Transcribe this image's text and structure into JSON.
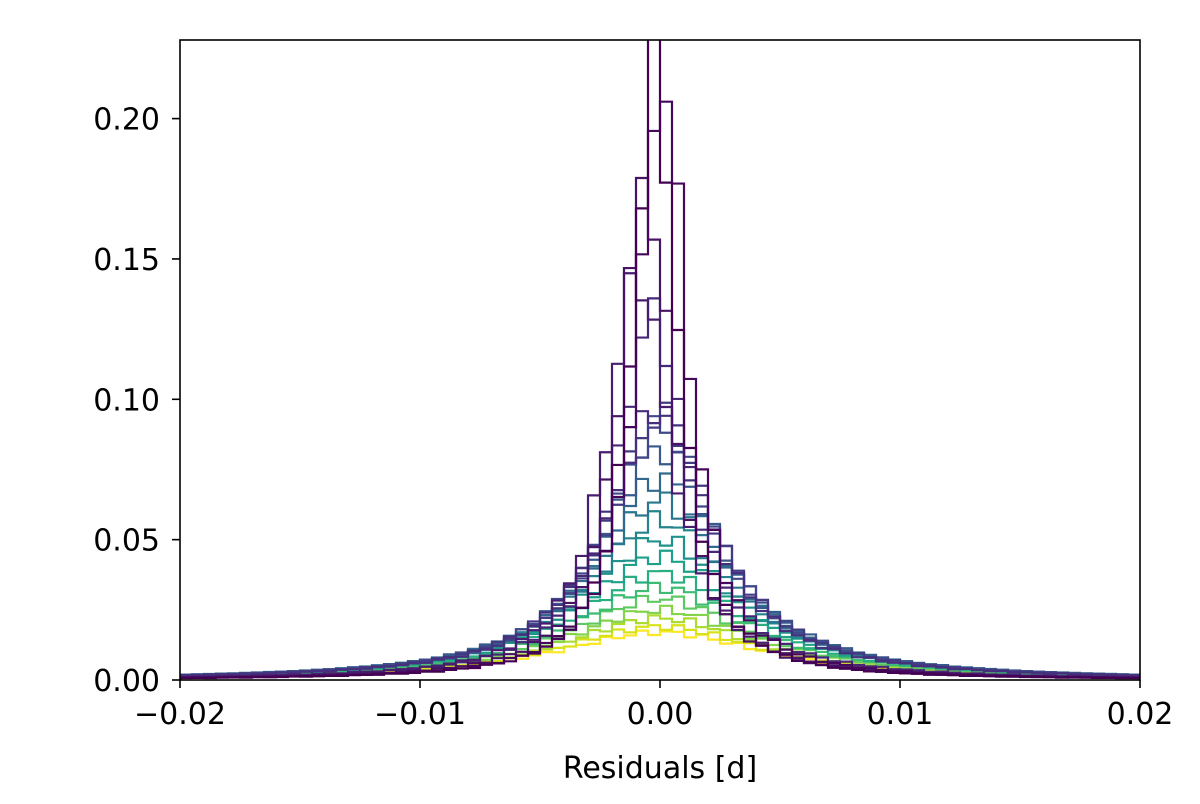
{
  "chart_data": {
    "type": "histogram",
    "xlabel": "Residuals [d]",
    "ylabel": "",
    "xlim": [
      -0.02,
      0.02
    ],
    "ylim": [
      0,
      0.228
    ],
    "grid": false,
    "legend": "none",
    "x_ticks": [
      -0.02,
      -0.01,
      0.0,
      0.01,
      0.02
    ],
    "x_tick_labels": [
      "−0.02",
      "−0.01",
      "0.00",
      "0.01",
      "0.02"
    ],
    "y_ticks": [
      0.0,
      0.05,
      0.1,
      0.15,
      0.2
    ],
    "y_tick_labels": [
      "0.00",
      "0.05",
      "0.10",
      "0.15",
      "0.20"
    ],
    "colormap": "viridis",
    "series": [
      {
        "color": "#440154",
        "bin_width": 0.0005,
        "peak": 0.217,
        "center": -0.0002,
        "width": 0.0011,
        "tail": 0.35
      },
      {
        "color": "#46085c",
        "bin_width": 0.0005,
        "peak": 0.216,
        "center": 0.0001,
        "width": 0.0012,
        "tail": 0.35
      },
      {
        "color": "#471365",
        "bin_width": 0.0005,
        "peak": 0.178,
        "center": -0.0006,
        "width": 0.0013,
        "tail": 0.35
      },
      {
        "color": "#481d6f",
        "bin_width": 0.0005,
        "peak": 0.145,
        "center": -0.0009,
        "width": 0.0016,
        "tail": 0.4
      },
      {
        "color": "#472777",
        "bin_width": 0.0005,
        "peak": 0.13,
        "center": -0.0003,
        "width": 0.0018,
        "tail": 0.45
      },
      {
        "color": "#46307e",
        "bin_width": 0.0005,
        "peak": 0.096,
        "center": -0.0001,
        "width": 0.0026,
        "tail": 0.5
      },
      {
        "color": "#443983",
        "bin_width": 0.0005,
        "peak": 0.094,
        "center": 0.0,
        "width": 0.0027,
        "tail": 0.5
      },
      {
        "color": "#3f4889",
        "bin_width": 0.0005,
        "peak": 0.09,
        "center": 0.0,
        "width": 0.0028,
        "tail": 0.5
      },
      {
        "color": "#38598c",
        "bin_width": 0.0005,
        "peak": 0.082,
        "center": 0.0,
        "width": 0.003,
        "tail": 0.5
      },
      {
        "color": "#31688e",
        "bin_width": 0.0005,
        "peak": 0.072,
        "center": 0.0,
        "width": 0.0032,
        "tail": 0.5
      },
      {
        "color": "#2a768e",
        "bin_width": 0.0005,
        "peak": 0.064,
        "center": 0.0,
        "width": 0.0034,
        "tail": 0.5
      },
      {
        "color": "#25838e",
        "bin_width": 0.0005,
        "peak": 0.057,
        "center": 0.0,
        "width": 0.0036,
        "tail": 0.5
      },
      {
        "color": "#20928c",
        "bin_width": 0.0005,
        "peak": 0.05,
        "center": 0.0,
        "width": 0.0038,
        "tail": 0.5
      },
      {
        "color": "#1fa088",
        "bin_width": 0.0005,
        "peak": 0.044,
        "center": 0.0,
        "width": 0.004,
        "tail": 0.5
      },
      {
        "color": "#28ae80",
        "bin_width": 0.0005,
        "peak": 0.038,
        "center": 0.0,
        "width": 0.0042,
        "tail": 0.5
      },
      {
        "color": "#3fbc73",
        "bin_width": 0.0005,
        "peak": 0.033,
        "center": 0.0,
        "width": 0.0044,
        "tail": 0.5
      },
      {
        "color": "#5ec962",
        "bin_width": 0.0005,
        "peak": 0.029,
        "center": 0.0,
        "width": 0.0046,
        "tail": 0.5
      },
      {
        "color": "#84d44b",
        "bin_width": 0.0005,
        "peak": 0.025,
        "center": 0.0,
        "width": 0.0048,
        "tail": 0.5
      },
      {
        "color": "#addc30",
        "bin_width": 0.0005,
        "peak": 0.022,
        "center": 0.0,
        "width": 0.005,
        "tail": 0.5
      },
      {
        "color": "#d8e219",
        "bin_width": 0.0005,
        "peak": 0.019,
        "center": 0.0,
        "width": 0.0052,
        "tail": 0.5
      },
      {
        "color": "#fde725",
        "bin_width": 0.0005,
        "peak": 0.017,
        "center": 0.0,
        "width": 0.0054,
        "tail": 0.5
      }
    ]
  }
}
